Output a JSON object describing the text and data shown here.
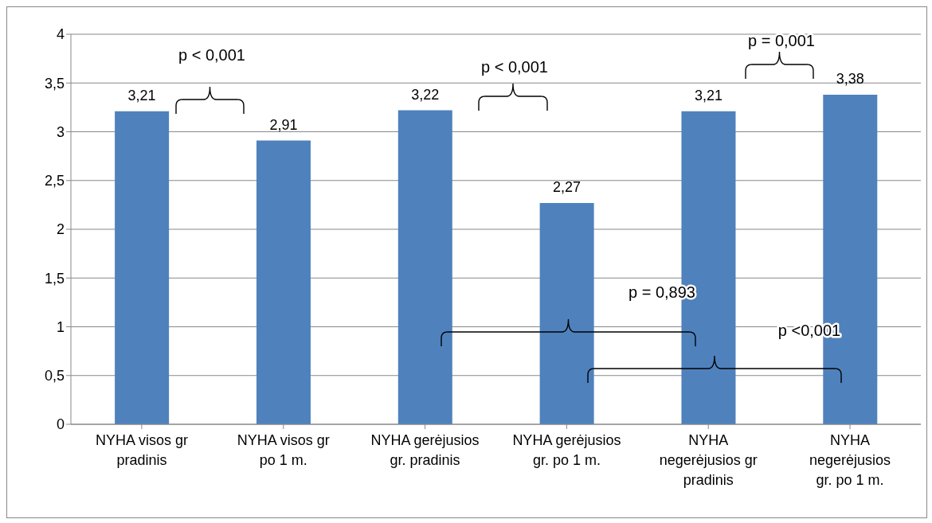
{
  "chart_data": {
    "type": "bar",
    "categories": [
      "NYHA visos gr pradinis",
      "NYHA visos gr po 1 m.",
      "NYHA gerėjusios gr. pradinis",
      "NYHA gerėjusios gr. po 1 m.",
      "NYHA negerėjusios gr pradinis",
      "NYHA negerėjusios gr. po 1 m."
    ],
    "values": [
      3.21,
      2.91,
      3.22,
      2.27,
      3.21,
      3.38
    ],
    "value_labels": [
      "3,21",
      "2,91",
      "3,22",
      "2,27",
      "3,21",
      "3,38"
    ],
    "color": "#4f81bd",
    "ylim": [
      0,
      4
    ],
    "yticks": [
      0,
      {
        "value": 0.5,
        "label": "0,5"
      },
      1,
      {
        "value": 1.5,
        "label": "1,5"
      },
      2,
      {
        "value": 2.5,
        "label": "2,5"
      },
      3,
      {
        "value": 3.5,
        "label": "3,5"
      },
      4
    ],
    "grid": "y",
    "annotations": [
      "p < 0,001",
      "p < 0,001",
      "p = 0,001",
      "p = 0,893",
      "p <0,001"
    ]
  }
}
